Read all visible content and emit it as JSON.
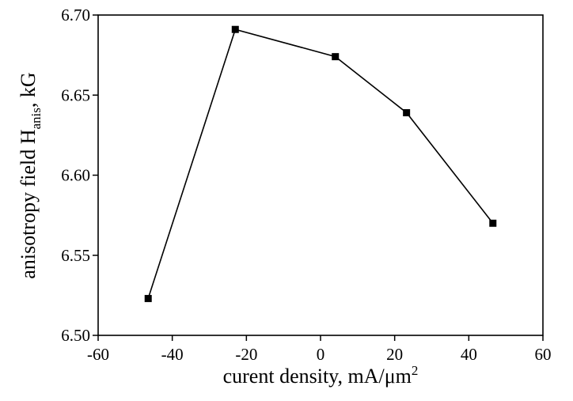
{
  "chart_data": {
    "type": "line",
    "title": "",
    "xlabel": {
      "main": "curent density, mA/μm",
      "superscript": "2"
    },
    "ylabel": {
      "main": "anisotropy field H",
      "subscript": "anis",
      "suffix": ", kG"
    },
    "xlim": [
      -60,
      60
    ],
    "ylim": [
      6.5,
      6.7
    ],
    "x_ticks": [
      -60,
      -40,
      -20,
      0,
      20,
      40,
      60
    ],
    "y_ticks": [
      6.5,
      6.55,
      6.6,
      6.65,
      6.7
    ],
    "x_tick_labels": [
      "-60",
      "-40",
      "-20",
      "0",
      "20",
      "40",
      "60"
    ],
    "y_tick_labels": [
      "6.50",
      "6.55",
      "6.60",
      "6.65",
      "6.70"
    ],
    "grid": false,
    "legend": "none",
    "marker": "square",
    "color": "#000000",
    "series": [
      {
        "x": [
          -46.5,
          -23.0,
          4.0,
          23.2,
          46.5
        ],
        "y": [
          6.523,
          6.691,
          6.674,
          6.639,
          6.57
        ]
      }
    ]
  }
}
